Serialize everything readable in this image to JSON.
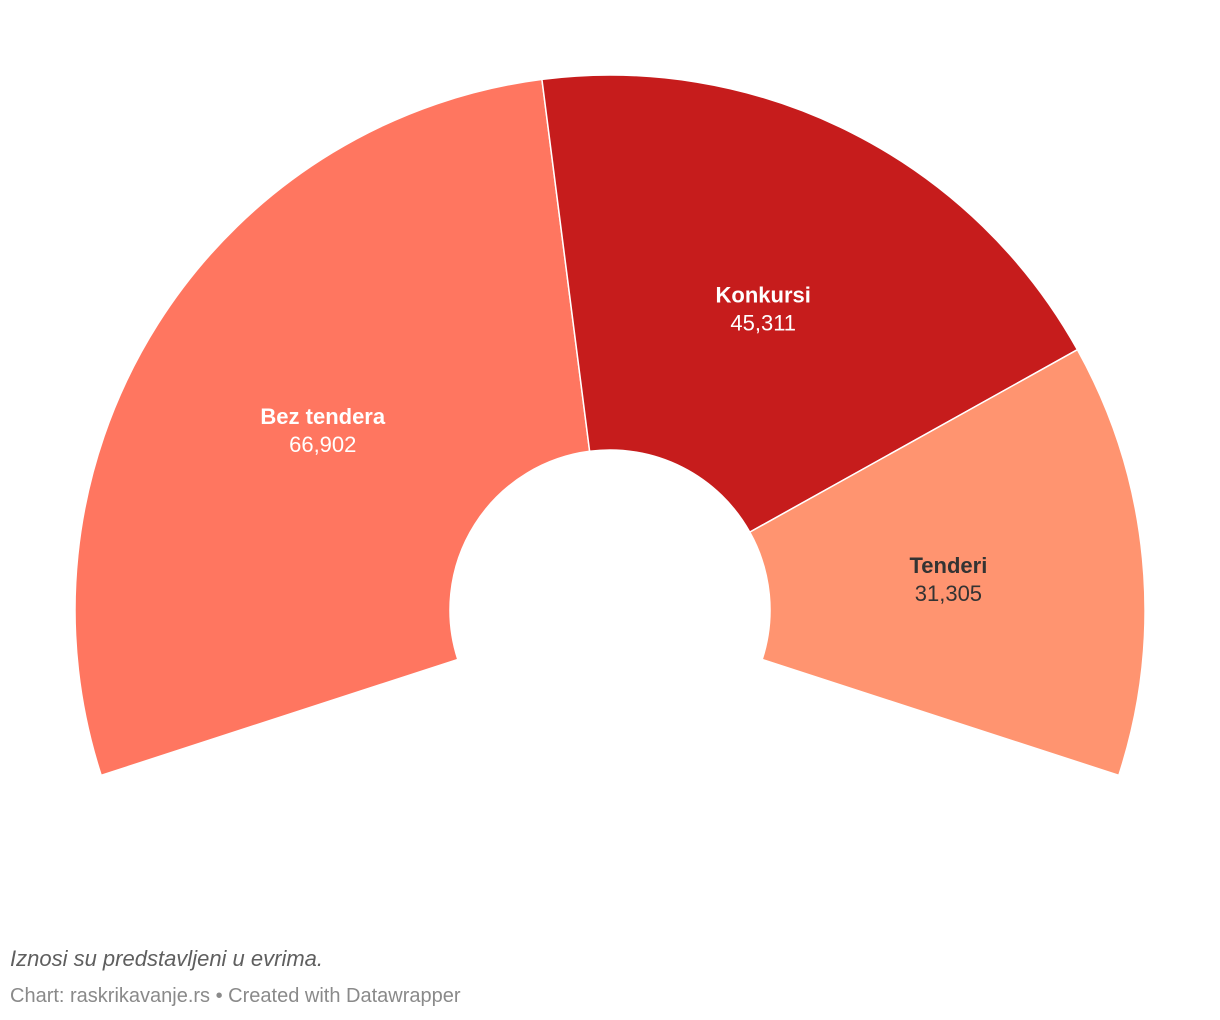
{
  "chart_data": {
    "type": "pie",
    "variant": "semicircle-donut",
    "slices": [
      {
        "label": "Bez tendera",
        "value": 66902,
        "value_label": "66,902",
        "color": "#ff7660",
        "label_color": "#ffffff"
      },
      {
        "label": "Konkursi",
        "value": 45311,
        "value_label": "45,311",
        "color": "#c61c1c",
        "label_color": "#ffffff"
      },
      {
        "label": "Tenderi",
        "value": 31305,
        "value_label": "31,305",
        "color": "#ff9470",
        "label_color": "#333333"
      }
    ]
  },
  "footer": {
    "notes": "Iznosi su predstavljeni u evrima.",
    "source": "Chart: raskrikavanje.rs • Created with Datawrapper"
  }
}
